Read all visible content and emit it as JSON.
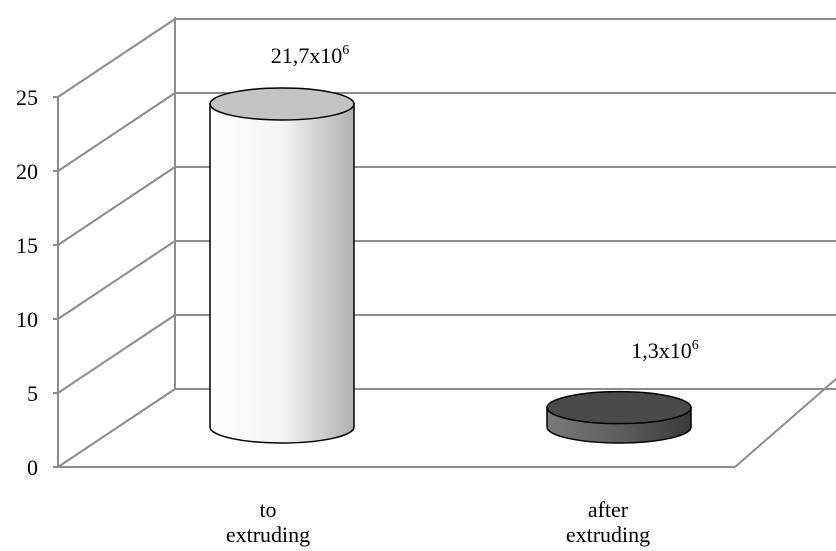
{
  "chart_data": {
    "type": "bar",
    "style": "3d-cylinder",
    "categories": [
      [
        "to",
        "extruding"
      ],
      [
        "after",
        "extruding"
      ]
    ],
    "values": [
      21.7,
      1.3
    ],
    "data_labels": [
      {
        "base": "21,7x10",
        "exp": "6"
      },
      {
        "base": "1,3x10",
        "exp": "6"
      }
    ],
    "ylim": [
      0,
      25
    ],
    "yticks": [
      0,
      5,
      10,
      15,
      20,
      25
    ],
    "grid": true,
    "legend": false,
    "colors": {
      "gridline": "#8c8c8c",
      "bar_light": "#f0f0f0",
      "bar_light_top": "#c4c4c4",
      "bar_dark": "#5a5a5a",
      "bar_dark_top": "#4a4a4a"
    }
  }
}
